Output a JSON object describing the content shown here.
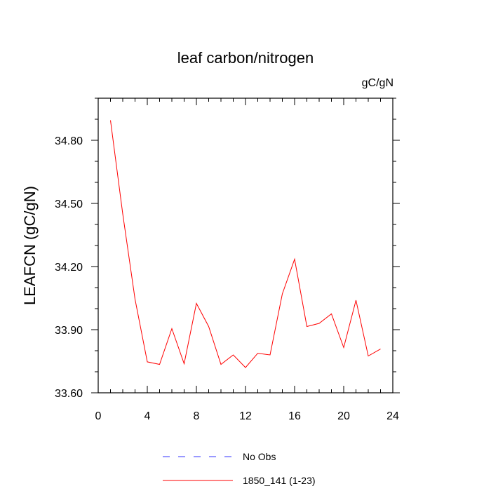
{
  "chart_data": {
    "type": "line",
    "title": "leaf carbon/nitrogen",
    "units": "gC/gN",
    "xlabel": "",
    "ylabel": "LEAFCN  (gC/gN)",
    "xlim": [
      0,
      24
    ],
    "ylim": [
      33.6,
      35.0
    ],
    "x_ticks": [
      0,
      4,
      8,
      12,
      16,
      20,
      24
    ],
    "y_ticks": [
      33.6,
      33.9,
      34.2,
      34.5,
      34.8
    ],
    "x_tick_labels": [
      "0",
      "4",
      "8",
      "12",
      "16",
      "20",
      "24"
    ],
    "y_tick_labels": [
      "33.60",
      "33.90",
      "34.20",
      "34.50",
      "34.80"
    ],
    "legend_position": "bottom",
    "series": [
      {
        "name": "No Obs",
        "color": "#3333ff",
        "style": "dashed",
        "x": [],
        "values": []
      },
      {
        "name": "1850_141 (1-23)",
        "color": "#ff0000",
        "style": "solid",
        "x": [
          1,
          2,
          3,
          4,
          5,
          6,
          7,
          8,
          9,
          10,
          11,
          12,
          13,
          14,
          15,
          16,
          17,
          18,
          19,
          20,
          21,
          22,
          23
        ],
        "values": [
          34.895,
          34.45,
          34.045,
          33.747,
          33.735,
          33.905,
          33.738,
          34.025,
          33.915,
          33.735,
          33.78,
          33.72,
          33.788,
          33.78,
          34.07,
          34.235,
          33.915,
          33.93,
          33.975,
          33.815,
          34.04,
          33.775,
          33.808
        ]
      }
    ]
  }
}
